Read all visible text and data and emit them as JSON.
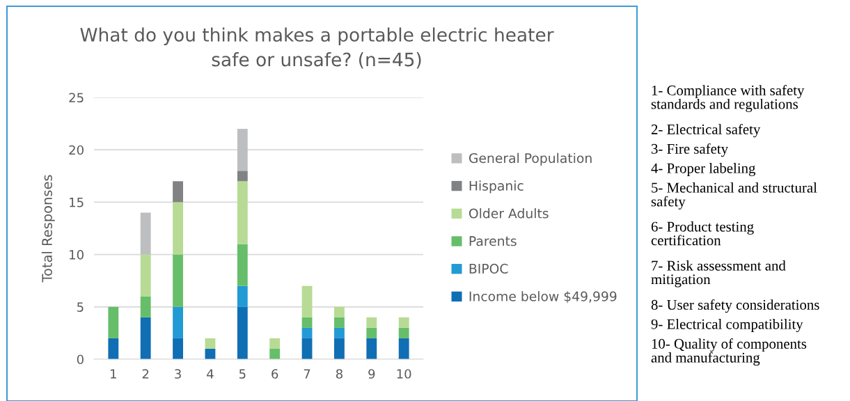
{
  "chart_data": {
    "type": "bar",
    "stacked": true,
    "title": "What do you think makes a portable electric heater\nsafe or unsafe? (n=45)",
    "ylabel": "Total Responses",
    "categories": [
      "1",
      "2",
      "3",
      "4",
      "5",
      "6",
      "7",
      "8",
      "9",
      "10"
    ],
    "series": [
      {
        "name": "Income below $49,999",
        "color": "#106eb4",
        "values": [
          2,
          4,
          2,
          1,
          5,
          0,
          2,
          2,
          2,
          2
        ]
      },
      {
        "name": "BIPOC",
        "color": "#229ad4",
        "values": [
          0,
          0,
          3,
          0,
          2,
          0,
          1,
          1,
          0,
          0
        ]
      },
      {
        "name": "Parents",
        "color": "#66be6a",
        "values": [
          3,
          2,
          5,
          0,
          4,
          1,
          1,
          1,
          1,
          1
        ]
      },
      {
        "name": "Older Adults",
        "color": "#b7db94",
        "values": [
          0,
          4,
          5,
          1,
          6,
          1,
          3,
          1,
          1,
          1
        ]
      },
      {
        "name": "Hispanic",
        "color": "#808284",
        "values": [
          0,
          0,
          2,
          0,
          1,
          0,
          0,
          0,
          0,
          0
        ]
      },
      {
        "name": "General Population",
        "color": "#bdbec0",
        "values": [
          0,
          4,
          0,
          0,
          4,
          0,
          0,
          0,
          0,
          0
        ]
      }
    ],
    "ylim": [
      0,
      25
    ],
    "yticks": [
      0,
      5,
      10,
      15,
      20,
      25
    ],
    "grid": "y",
    "legend": "right",
    "annotations": [
      "1- Compliance with safety\nstandards and regulations",
      "2- Electrical safety",
      "3- Fire safety",
      "4- Proper labeling",
      "5- Mechanical and structural\nsafety",
      "6- Product testing\ncertification",
      "7- Risk assessment and\nmitigation",
      "8- User safety considerations",
      "9- Electrical compatibility",
      "10- Quality of components\nand manufacturing"
    ]
  }
}
